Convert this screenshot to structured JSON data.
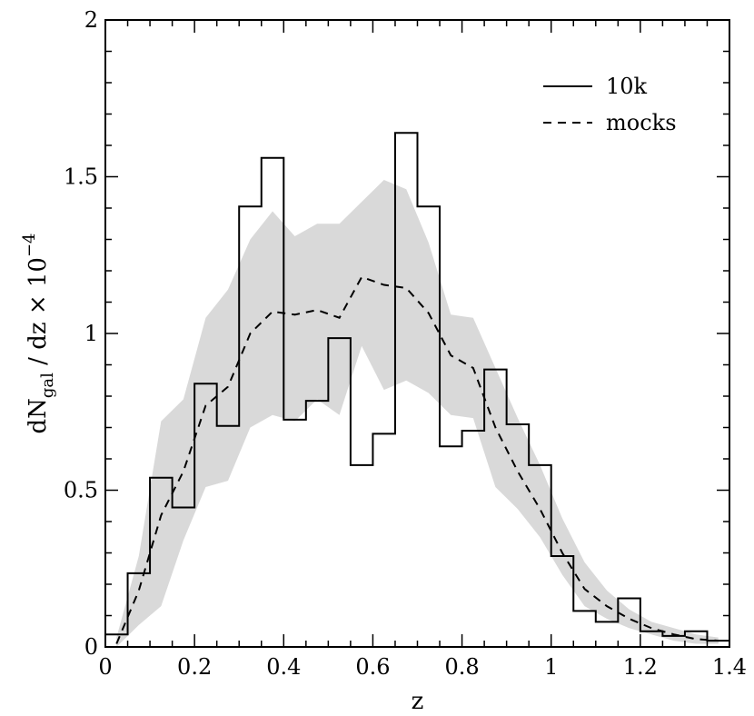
{
  "chart_data": {
    "type": "line",
    "title": "",
    "xlabel": "z",
    "ylabel": {
      "main": "dN",
      "sub": "gal",
      "rest": " / dz × 10",
      "sup": "−4"
    },
    "xlim": [
      0,
      1.4
    ],
    "ylim": [
      0,
      2
    ],
    "xticks": [
      0,
      0.2,
      0.4,
      0.6,
      0.8,
      1,
      1.2,
      1.4
    ],
    "xtick_labels": [
      "0",
      "0.2",
      "0.4",
      "0.6",
      "0.8",
      "1",
      "1.2",
      "1.4"
    ],
    "yticks": [
      0,
      0.5,
      1,
      1.5,
      2
    ],
    "ytick_labels": [
      "0",
      "0.5",
      "1",
      "1.5",
      "2"
    ],
    "x_minor_step": 0.05,
    "y_minor_step": 0.1,
    "grid": false,
    "legend_position": "top-right",
    "band_color": "#d9d9d9",
    "line_color": "#000000",
    "series": [
      {
        "name": "10k",
        "style": "step-solid",
        "bin_edges": [
          0,
          0.05,
          0.1,
          0.15,
          0.2,
          0.25,
          0.3,
          0.35,
          0.4,
          0.45,
          0.5,
          0.55,
          0.6,
          0.65,
          0.7,
          0.75,
          0.8,
          0.85,
          0.9,
          0.95,
          1,
          1.05,
          1.1,
          1.15,
          1.2,
          1.25,
          1.3,
          1.35,
          1.4
        ],
        "values": [
          0.04,
          0.235,
          0.54,
          0.445,
          0.84,
          0.705,
          1.405,
          1.56,
          0.725,
          0.785,
          0.985,
          0.58,
          0.68,
          1.64,
          1.405,
          0.64,
          0.69,
          0.885,
          0.71,
          0.58,
          0.29,
          0.115,
          0.08,
          0.155,
          0.05,
          0.035,
          0.05,
          0.02
        ]
      },
      {
        "name": "mocks",
        "style": "dashed",
        "x": [
          0.025,
          0.075,
          0.125,
          0.175,
          0.225,
          0.275,
          0.325,
          0.375,
          0.425,
          0.475,
          0.525,
          0.575,
          0.625,
          0.675,
          0.725,
          0.775,
          0.825,
          0.875,
          0.925,
          0.975,
          1.025,
          1.075,
          1.125,
          1.175,
          1.225,
          1.275,
          1.325,
          1.375
        ],
        "y": [
          0.01,
          0.18,
          0.42,
          0.56,
          0.77,
          0.83,
          1.0,
          1.07,
          1.06,
          1.075,
          1.05,
          1.18,
          1.155,
          1.145,
          1.065,
          0.93,
          0.89,
          0.7,
          0.56,
          0.44,
          0.3,
          0.185,
          0.13,
          0.09,
          0.06,
          0.04,
          0.025,
          0.02
        ]
      }
    ],
    "band": {
      "x": [
        0.025,
        0.075,
        0.125,
        0.175,
        0.225,
        0.275,
        0.325,
        0.375,
        0.425,
        0.475,
        0.525,
        0.575,
        0.625,
        0.675,
        0.725,
        0.775,
        0.825,
        0.875,
        0.925,
        0.975,
        1.025,
        1.075,
        1.125,
        1.175,
        1.225,
        1.275,
        1.325,
        1.375
      ],
      "lower": [
        0.0,
        0.07,
        0.13,
        0.34,
        0.51,
        0.53,
        0.7,
        0.74,
        0.72,
        0.79,
        0.74,
        0.96,
        0.82,
        0.85,
        0.81,
        0.74,
        0.73,
        0.51,
        0.44,
        0.35,
        0.23,
        0.13,
        0.09,
        0.06,
        0.04,
        0.02,
        0.01,
        0.01
      ],
      "upper": [
        0.03,
        0.29,
        0.72,
        0.79,
        1.05,
        1.14,
        1.3,
        1.39,
        1.31,
        1.35,
        1.35,
        1.42,
        1.49,
        1.46,
        1.29,
        1.06,
        1.05,
        0.89,
        0.73,
        0.58,
        0.41,
        0.27,
        0.18,
        0.12,
        0.08,
        0.06,
        0.04,
        0.03
      ]
    }
  }
}
